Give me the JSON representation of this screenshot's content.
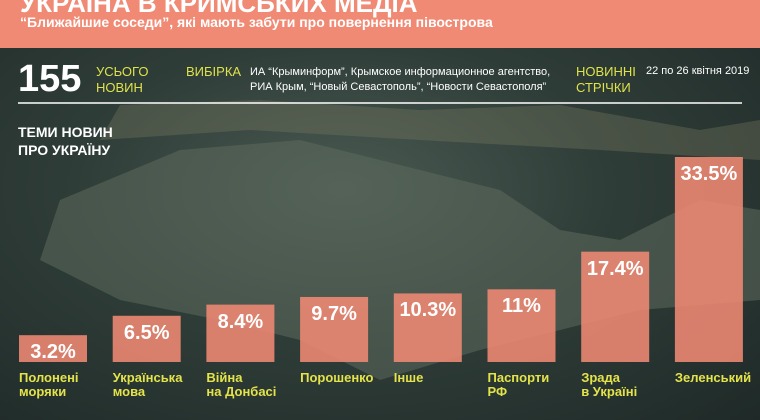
{
  "header": {
    "title": "УКРАЇНА В КРИМСЬКИХ МЕДІА",
    "subtitle": "“Ближайшие соседи”, які мають забути про повернення півострова"
  },
  "stats": {
    "total": 155,
    "total_label": "УСЬОГО\nНОВИН",
    "sample_label": "ВИБІРКА",
    "sample": "ИА “Крыминформ”, Крымское информационное агентство,\nРИА Крым, “Новый Севастополь”, “Новости Севастополя”",
    "feeds_label": "НОВИННІ\nСТРІЧКИ",
    "period": "22 по 26 квітня 2019"
  },
  "chart_data": {
    "type": "bar",
    "title": "ТЕМИ НОВИН\nПРО УКРАЇНУ",
    "categories": [
      "Полонені\nморяки",
      "Українська\nмова",
      "Війна\nна Донбасі",
      "Порошенко",
      "Інше",
      "Паспорти\nРФ",
      "Зрада\nв Україні",
      "Зеленський"
    ],
    "values": [
      3.2,
      6.5,
      8.4,
      9.7,
      10.3,
      11,
      17.4,
      33.5
    ],
    "value_labels": [
      "3.2%",
      "6.5%",
      "8.4%",
      "9.7%",
      "10.3%",
      "11%",
      "17.4%",
      "33.5%"
    ],
    "color": "#f08a74"
  }
}
